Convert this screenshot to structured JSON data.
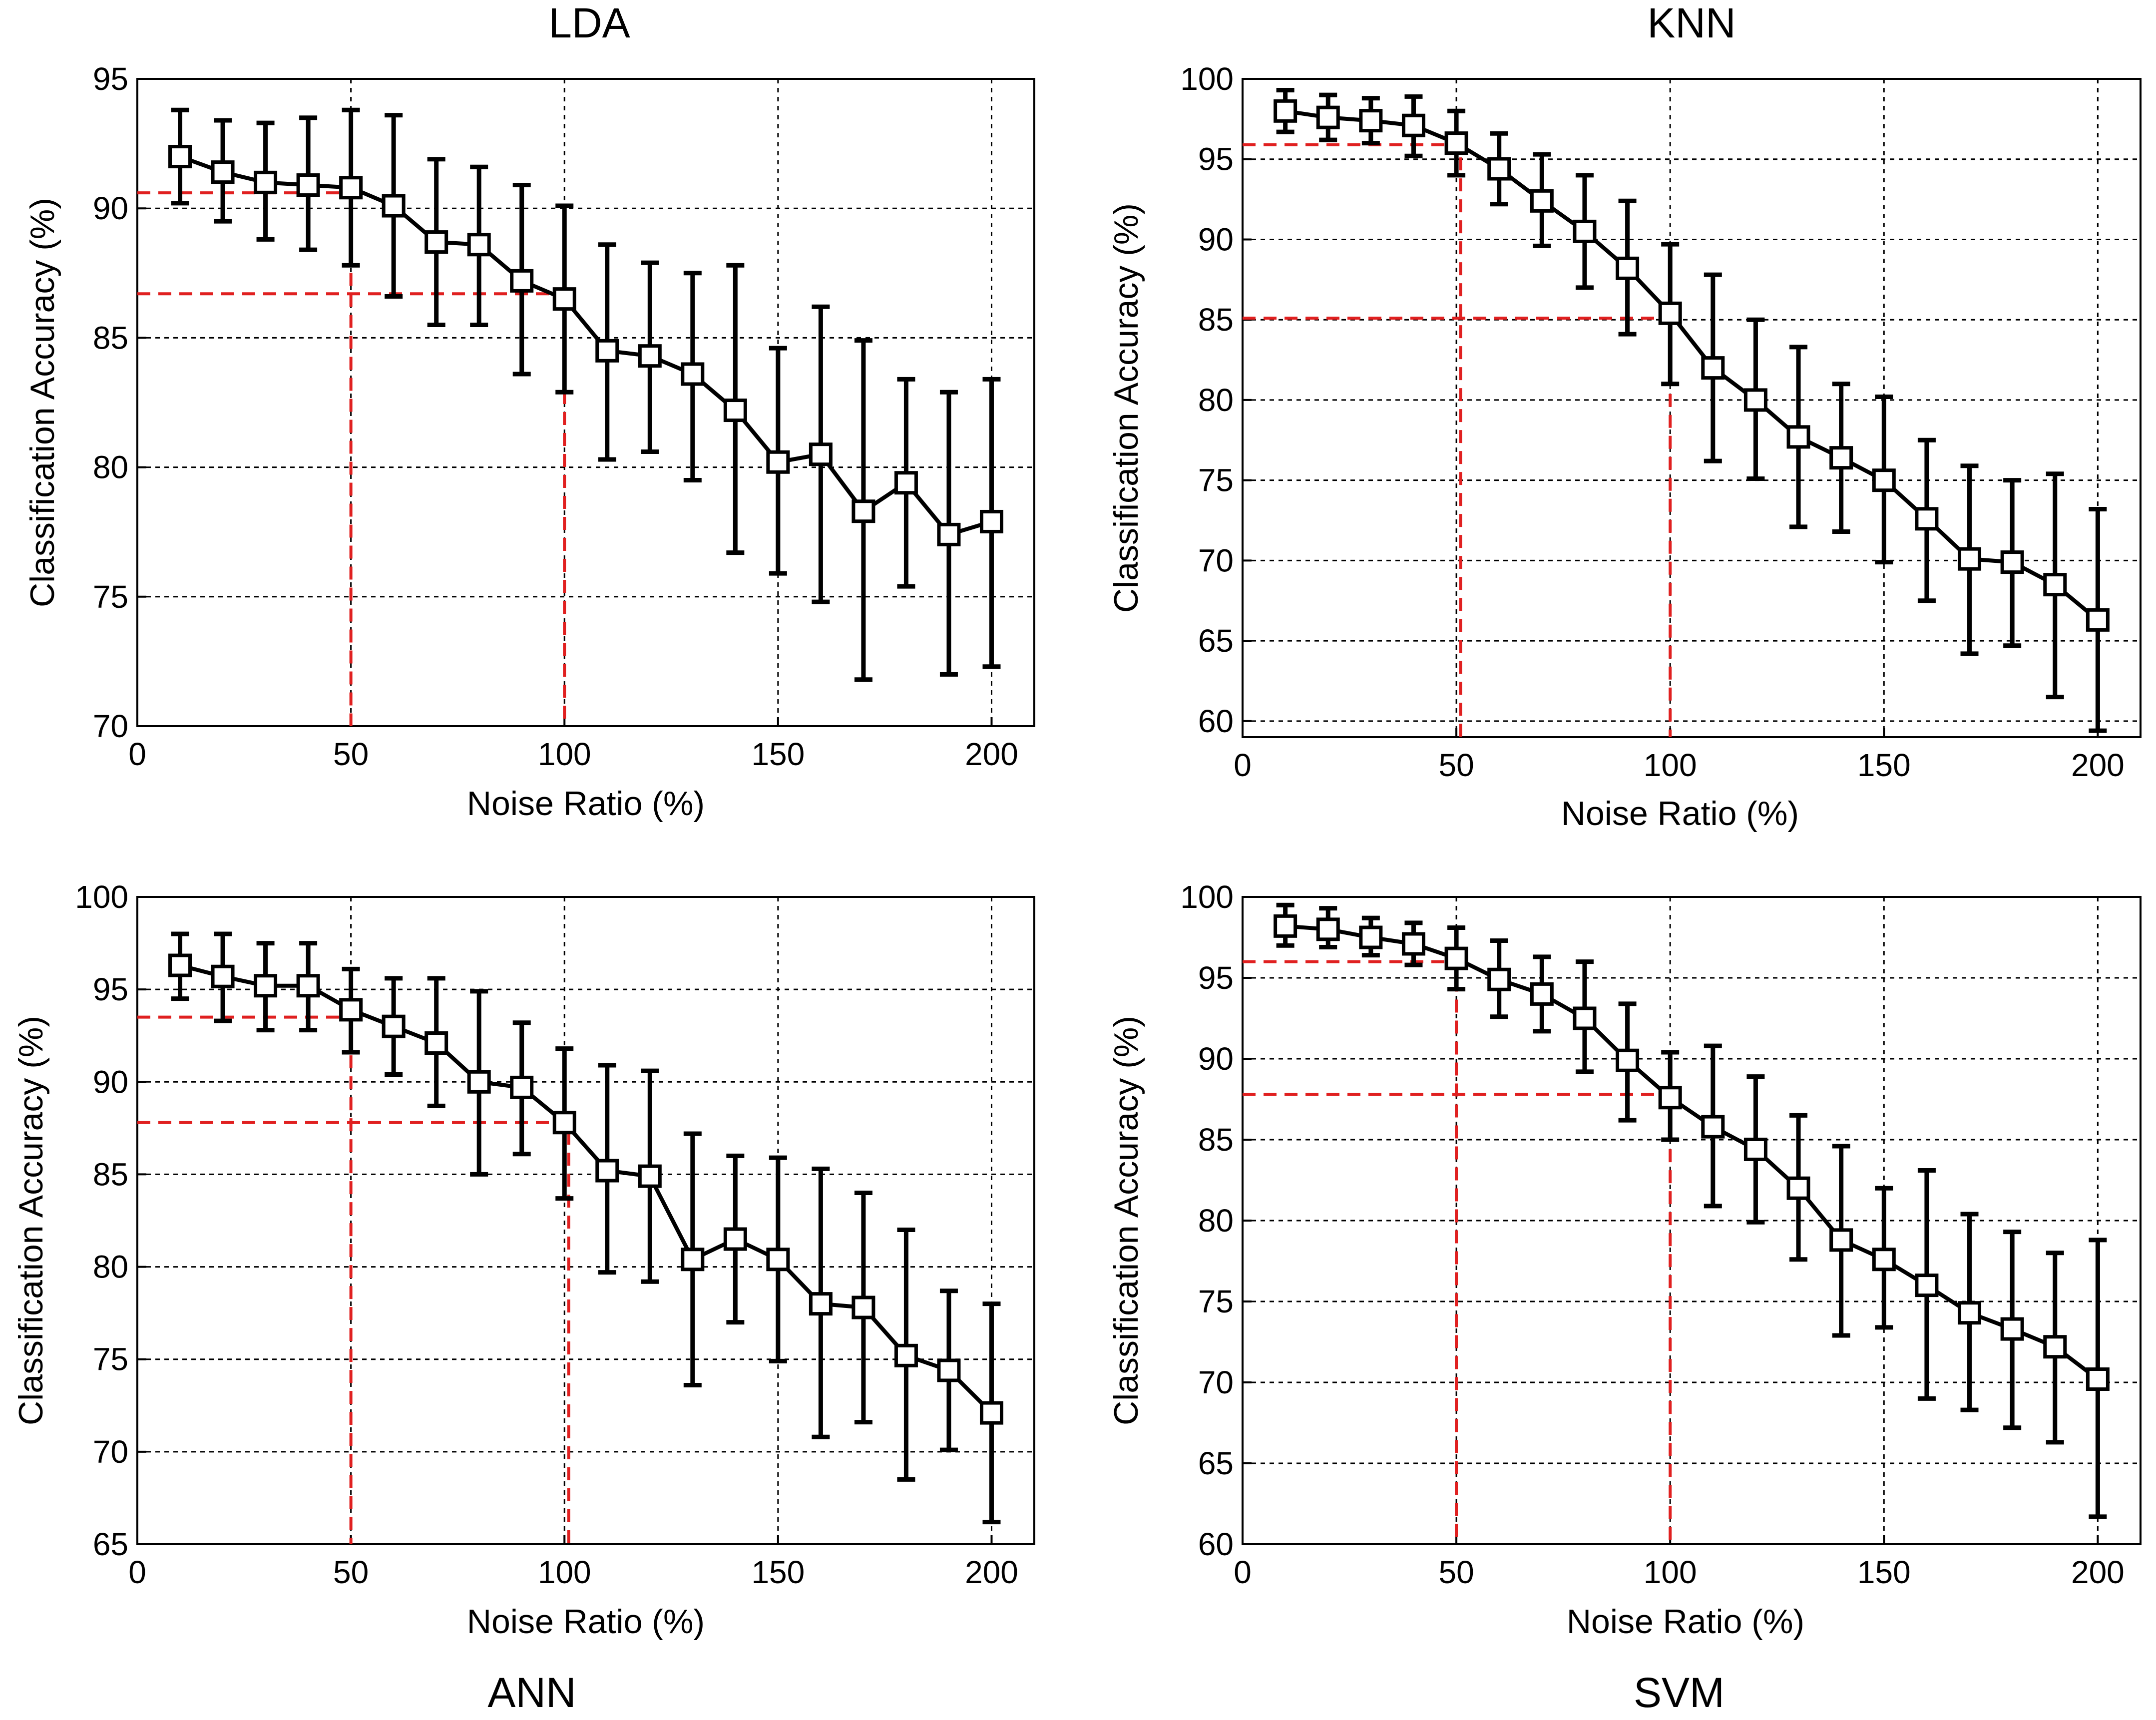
{
  "chart_data": [
    {
      "type": "line",
      "title": "LDA",
      "xlabel": "Noise Ratio (%)",
      "ylabel": "Classification Accuracy (%)",
      "xlim": [
        0,
        210
      ],
      "ylim": [
        70,
        95
      ],
      "xticks": [
        0,
        50,
        100,
        150,
        200
      ],
      "yticks": [
        70,
        75,
        80,
        85,
        90,
        95
      ],
      "grid": true,
      "series": [
        {
          "name": "LDA",
          "x": [
            10,
            20,
            30,
            40,
            50,
            60,
            70,
            80,
            90,
            100,
            110,
            120,
            130,
            140,
            150,
            160,
            170,
            180,
            190,
            200
          ],
          "values": [
            92.0,
            91.4,
            91.0,
            90.9,
            90.8,
            90.1,
            88.7,
            88.6,
            87.2,
            86.5,
            84.5,
            84.3,
            83.6,
            82.2,
            80.2,
            80.5,
            78.3,
            79.4,
            77.4,
            77.9
          ],
          "err_low": [
            90.2,
            89.5,
            88.8,
            88.4,
            87.8,
            86.6,
            85.5,
            85.5,
            83.6,
            82.9,
            80.3,
            80.6,
            79.5,
            76.7,
            75.9,
            74.8,
            71.8,
            75.4,
            72.0,
            72.3
          ],
          "err_high": [
            93.8,
            93.4,
            93.3,
            93.5,
            93.8,
            93.6,
            91.9,
            91.6,
            90.9,
            90.1,
            88.6,
            87.9,
            87.5,
            87.8,
            84.6,
            86.2,
            84.9,
            83.4,
            82.9,
            83.4
          ]
        }
      ],
      "reference_lines": [
        {
          "x": 50,
          "y": 90.6
        },
        {
          "x": 100,
          "y": 86.7
        }
      ]
    },
    {
      "type": "line",
      "title": "KNN",
      "xlabel": "Noise Ratio (%)",
      "ylabel": "Classification Accuracy (%)",
      "xlim": [
        0,
        210
      ],
      "ylim": [
        59,
        100
      ],
      "xticks": [
        0,
        50,
        100,
        150,
        200
      ],
      "yticks": [
        60,
        65,
        70,
        75,
        80,
        85,
        90,
        95,
        100
      ],
      "grid": true,
      "series": [
        {
          "name": "KNN",
          "x": [
            10,
            20,
            30,
            40,
            50,
            60,
            70,
            80,
            90,
            100,
            110,
            120,
            130,
            140,
            150,
            160,
            170,
            180,
            190,
            200
          ],
          "values": [
            98.0,
            97.6,
            97.4,
            97.1,
            96.0,
            94.4,
            92.4,
            90.5,
            88.2,
            85.4,
            82.0,
            80.0,
            77.7,
            76.4,
            75.0,
            72.6,
            70.1,
            69.9,
            68.5,
            66.3
          ],
          "err_low": [
            96.7,
            96.2,
            96.0,
            95.2,
            94.0,
            92.2,
            89.6,
            87.0,
            84.1,
            81.0,
            76.2,
            75.1,
            72.1,
            71.8,
            69.9,
            67.5,
            64.2,
            64.7,
            61.5,
            59.4
          ],
          "err_high": [
            99.3,
            99.0,
            98.8,
            98.9,
            98.0,
            96.6,
            95.3,
            94.0,
            92.4,
            89.7,
            87.8,
            85.0,
            83.3,
            81.0,
            80.2,
            77.5,
            75.9,
            75.0,
            75.4,
            73.2
          ]
        }
      ],
      "reference_lines": [
        {
          "x": 51,
          "y": 95.9
        },
        {
          "x": 100,
          "y": 85.1
        }
      ]
    },
    {
      "type": "line",
      "title": "ANN",
      "xlabel": "Noise Ratio (%)",
      "ylabel": "Classification Accuracy (%)",
      "xlim": [
        0,
        210
      ],
      "ylim": [
        65,
        100
      ],
      "xticks": [
        0,
        50,
        100,
        150,
        200
      ],
      "yticks": [
        65,
        70,
        75,
        80,
        85,
        90,
        95,
        100
      ],
      "grid": true,
      "series": [
        {
          "name": "ANN",
          "x": [
            10,
            20,
            30,
            40,
            50,
            60,
            70,
            80,
            90,
            100,
            110,
            120,
            130,
            140,
            150,
            160,
            170,
            180,
            190,
            200
          ],
          "values": [
            96.3,
            95.7,
            95.2,
            95.2,
            93.9,
            93.0,
            92.1,
            90.0,
            89.7,
            87.8,
            85.2,
            84.9,
            80.4,
            81.5,
            80.4,
            78.0,
            77.8,
            75.2,
            74.4,
            72.1
          ],
          "err_low": [
            94.5,
            93.3,
            92.8,
            92.8,
            91.6,
            90.4,
            88.7,
            85.0,
            86.1,
            83.7,
            79.7,
            79.2,
            73.6,
            77.0,
            74.9,
            70.8,
            71.6,
            68.5,
            70.1,
            66.2
          ],
          "err_high": [
            98.0,
            98.0,
            97.5,
            97.5,
            96.1,
            95.6,
            95.6,
            94.9,
            93.2,
            91.8,
            90.9,
            90.6,
            87.2,
            86.0,
            85.9,
            85.3,
            84.0,
            82.0,
            78.7,
            78.0
          ]
        }
      ],
      "reference_lines": [
        {
          "x": 50,
          "y": 93.5
        },
        {
          "x": 101,
          "y": 87.8
        }
      ]
    },
    {
      "type": "line",
      "title": "SVM",
      "xlabel": "Noise Ratio (%)",
      "ylabel": "Classification Accuracy (%)",
      "xlim": [
        0,
        210
      ],
      "ylim": [
        60,
        100
      ],
      "xticks": [
        0,
        50,
        100,
        150,
        200
      ],
      "yticks": [
        60,
        65,
        70,
        75,
        80,
        85,
        90,
        95,
        100
      ],
      "grid": true,
      "series": [
        {
          "name": "SVM",
          "x": [
            10,
            20,
            30,
            40,
            50,
            60,
            70,
            80,
            90,
            100,
            110,
            120,
            130,
            140,
            150,
            160,
            170,
            180,
            190,
            200
          ],
          "values": [
            98.2,
            98.0,
            97.5,
            97.1,
            96.2,
            94.9,
            94.0,
            92.5,
            89.9,
            87.6,
            85.8,
            84.4,
            82.0,
            78.8,
            77.6,
            76.0,
            74.3,
            73.3,
            72.2,
            70.2
          ],
          "err_low": [
            97.0,
            96.9,
            96.4,
            95.8,
            94.3,
            92.6,
            91.7,
            89.2,
            86.2,
            85.0,
            80.9,
            79.9,
            77.6,
            72.9,
            73.4,
            69.0,
            68.3,
            67.2,
            66.3,
            61.7
          ],
          "err_high": [
            99.5,
            99.3,
            98.7,
            98.4,
            98.1,
            97.3,
            96.3,
            96.0,
            93.4,
            90.4,
            90.8,
            88.9,
            86.5,
            84.6,
            82.0,
            83.1,
            80.4,
            79.3,
            78.0,
            78.8
          ]
        }
      ],
      "reference_lines": [
        {
          "x": 50,
          "y": 96.0
        },
        {
          "x": 100,
          "y": 87.8
        }
      ]
    }
  ]
}
